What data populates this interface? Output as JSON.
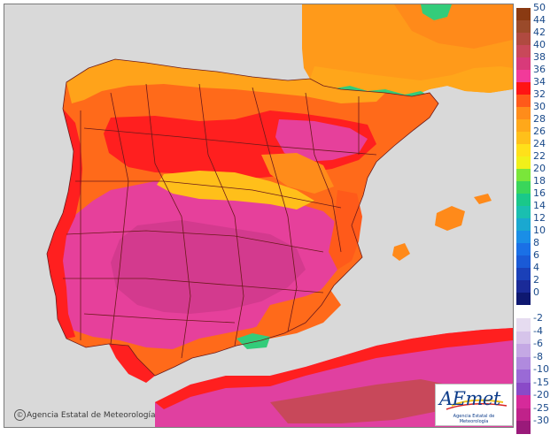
{
  "map": {
    "subject": "Iberian Peninsula temperature field",
    "credit_text": "Agencia Estatal de Meteorología",
    "credit_symbol": "©",
    "colors": {
      "background": "#d9d9d9",
      "sea": "#d9d9d9",
      "province_border": "#6b1a1a"
    },
    "regions": [
      {
        "name": "peninsula-base",
        "color": "#ff6a1a"
      },
      {
        "name": "inland-hot",
        "color": "#e6409b"
      },
      {
        "name": "core-heat",
        "color": "#d33a8e"
      },
      {
        "name": "ridge-warm",
        "color": "#ff1f1f"
      },
      {
        "name": "north-coast-cool",
        "color": "#ffa31a"
      },
      {
        "name": "mountain-mild",
        "color": "#ffbf1a"
      },
      {
        "name": "pyrenees-cool",
        "color": "#33cc7a"
      },
      {
        "name": "france-warm",
        "color": "#ff9a1a"
      },
      {
        "name": "north-africa-hot",
        "color": "#e040a0"
      },
      {
        "name": "balearics",
        "color": "#ff8a1a"
      }
    ]
  },
  "legend": {
    "positive": [
      {
        "label": "50",
        "color": "#8a3a12"
      },
      {
        "label": "44",
        "color": "#9a4a2a"
      },
      {
        "label": "42",
        "color": "#b04a40"
      },
      {
        "label": "40",
        "color": "#c8485a"
      },
      {
        "label": "38",
        "color": "#d83a7a"
      },
      {
        "label": "36",
        "color": "#f23a9a"
      },
      {
        "label": "34",
        "color": "#ff1414"
      },
      {
        "label": "32",
        "color": "#ff5a1a"
      },
      {
        "label": "30",
        "color": "#ff8c1a"
      },
      {
        "label": "28",
        "color": "#ffa81a"
      },
      {
        "label": "26",
        "color": "#ffc01a"
      },
      {
        "label": "24",
        "color": "#ffe01a"
      },
      {
        "label": "22",
        "color": "#f0f01a"
      },
      {
        "label": "20",
        "color": "#7ae63a"
      },
      {
        "label": "18",
        "color": "#3ad65a"
      },
      {
        "label": "16",
        "color": "#1ac88a"
      },
      {
        "label": "14",
        "color": "#1abfb0"
      },
      {
        "label": "12",
        "color": "#1aa8d0"
      },
      {
        "label": "10",
        "color": "#1a8ee6"
      },
      {
        "label": "8",
        "color": "#1a70e6"
      },
      {
        "label": "6",
        "color": "#1a5ad6"
      },
      {
        "label": "4",
        "color": "#1a40b8"
      },
      {
        "label": "2",
        "color": "#1a2a98"
      },
      {
        "label": "0",
        "color": "#0e1870"
      }
    ],
    "negative": [
      {
        "label": "-2",
        "color": "#e6dcf0"
      },
      {
        "label": "-4",
        "color": "#d6c4ea"
      },
      {
        "label": "-6",
        "color": "#c4a8e4"
      },
      {
        "label": "-8",
        "color": "#b08ade"
      },
      {
        "label": "-10",
        "color": "#9a6ad6"
      },
      {
        "label": "-15",
        "color": "#8a4ac8"
      },
      {
        "label": "-20",
        "color": "#d62a9a"
      },
      {
        "label": "-25",
        "color": "#c0228a"
      },
      {
        "label": "-30",
        "color": "#9a1a7a"
      }
    ]
  },
  "logo": {
    "wordmark": "AEmet",
    "subtitle": "Agencia Estatal de Meteorología",
    "colors": {
      "text": "#0d3c8a",
      "swoosh_red": "#d62020",
      "swoosh_yellow": "#f2c21a"
    }
  }
}
